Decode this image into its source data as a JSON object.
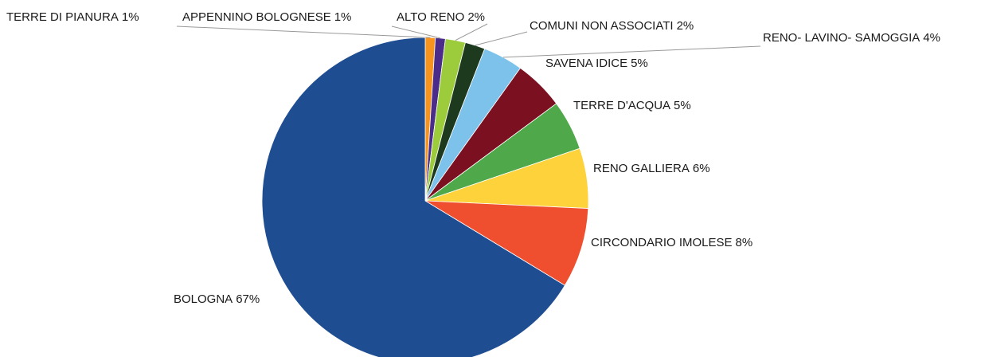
{
  "chart_data": {
    "type": "pie",
    "categories": [
      "TERRE DI PIANURA",
      "APPENNINO BOLOGNESE",
      "ALTO RENO",
      "COMUNI NON ASSOCIATI",
      "RENO- LAVINO- SAMOGGIA",
      "SAVENA IDICE",
      "TERRE D'ACQUA",
      "RENO GALLIERA",
      "CIRCONDARIO IMOLESE",
      "BOLOGNA"
    ],
    "values": [
      1,
      1,
      2,
      2,
      4,
      5,
      5,
      6,
      8,
      67
    ],
    "value_labels": [
      "1%",
      "1%",
      "2%",
      "2%",
      "4%",
      "5%",
      "5%",
      "6%",
      "8%",
      "67%"
    ],
    "colors": [
      "#f7941d",
      "#4b2c8a",
      "#9ccc3c",
      "#1e3a1e",
      "#7cc2ea",
      "#7a1020",
      "#4fa84a",
      "#fdd23a",
      "#ef4f2e",
      "#1f4d91"
    ]
  }
}
